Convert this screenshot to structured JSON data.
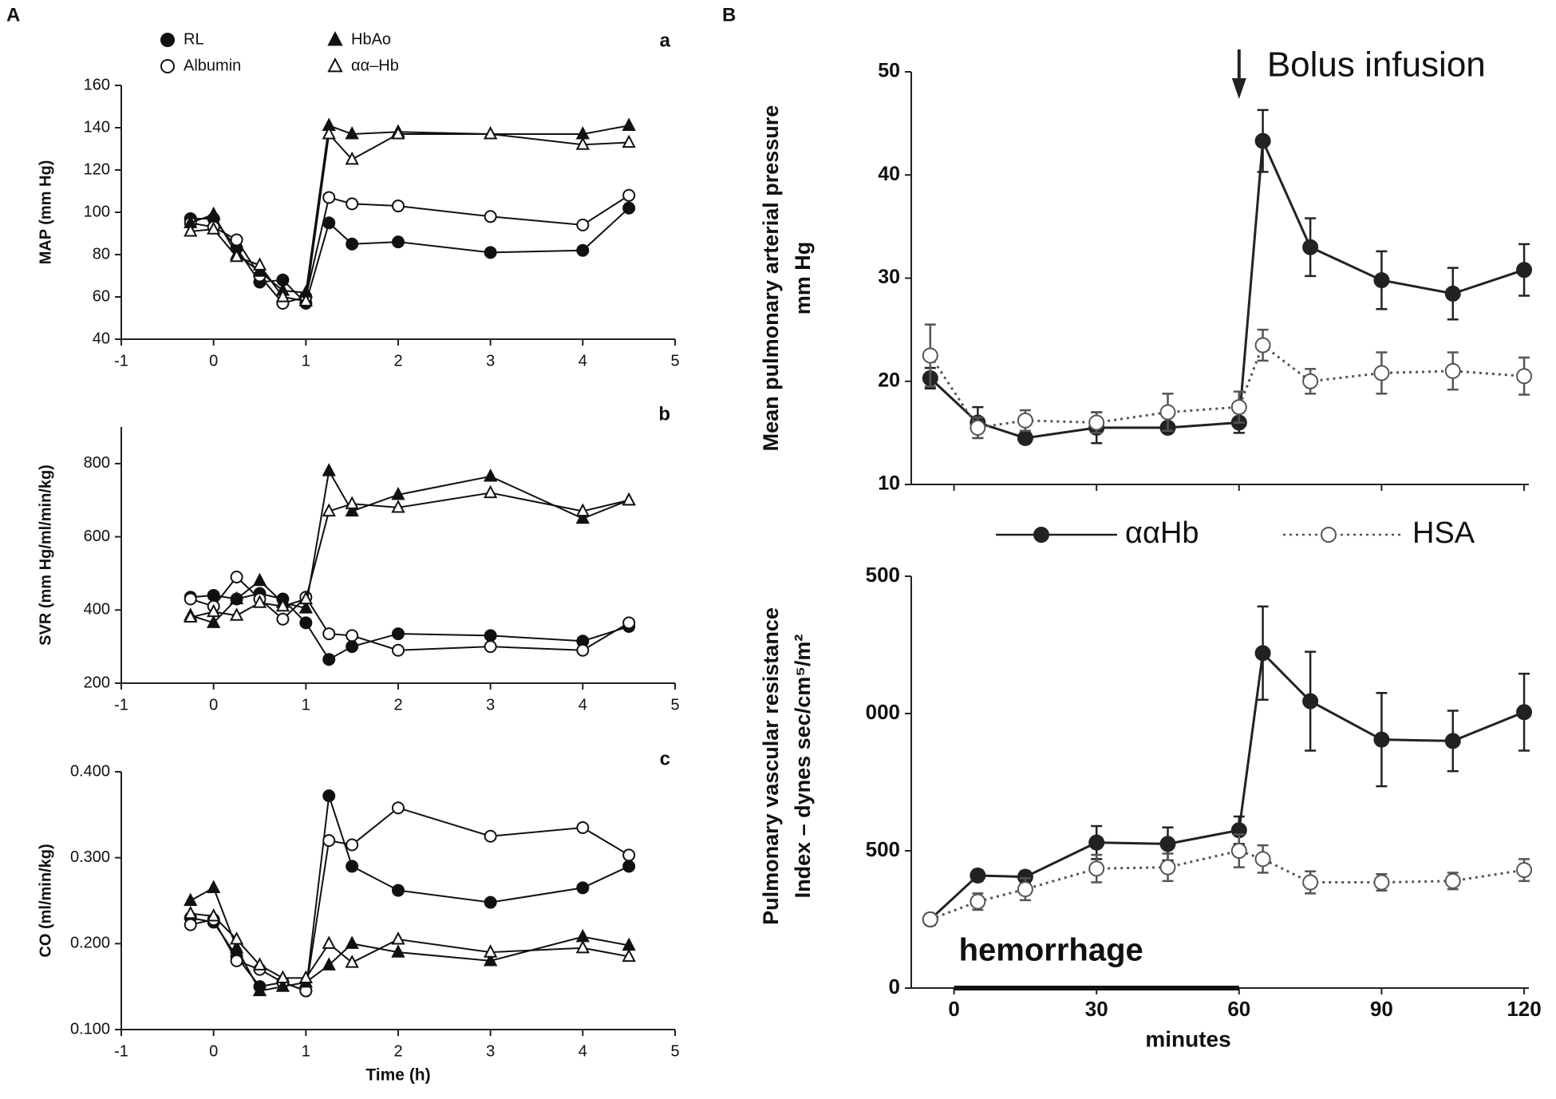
{
  "panels": [
    "A",
    "B"
  ],
  "chart_data": [
    {
      "type": "line",
      "label": "a",
      "ylabel": [
        "MAP (mm Hg)"
      ],
      "x": [
        -0.25,
        0,
        0.25,
        0.5,
        0.75,
        1,
        1.25,
        1.5,
        2,
        3,
        4,
        4.5
      ],
      "xlim": [
        -1,
        5
      ],
      "xticks": [
        -1,
        0,
        1,
        2,
        3,
        4,
        5
      ],
      "ylim": [
        40,
        160
      ],
      "yticks": [
        40,
        60,
        80,
        100,
        120,
        140,
        160
      ],
      "legend": true,
      "series": [
        {
          "name": "RL",
          "color": "#111111",
          "marker": "circle",
          "fill": "filled",
          "dash": "solid",
          "values": [
            97,
            97,
            83,
            67,
            68,
            57,
            95,
            85,
            86,
            81,
            82,
            102
          ]
        },
        {
          "name": "Albumin",
          "color": "#111111",
          "marker": "circle",
          "fill": "open",
          "dash": "solid",
          "values": [
            95,
            93,
            87,
            70,
            57,
            60,
            107,
            104,
            103,
            98,
            94,
            108
          ]
        },
        {
          "name": "HbAo",
          "color": "#111111",
          "marker": "triangle",
          "fill": "filled",
          "dash": "solid",
          "values": [
            95,
            99,
            80,
            72,
            63,
            62,
            141,
            137,
            138,
            137,
            137,
            141
          ]
        },
        {
          "name": "αα–Hb",
          "color": "#111111",
          "marker": "triangle",
          "fill": "open",
          "dash": "solid",
          "values": [
            91,
            92,
            79,
            75,
            60,
            58,
            137,
            125,
            137,
            137,
            132,
            133
          ]
        }
      ]
    },
    {
      "type": "line",
      "label": "b",
      "ylabel": [
        "SVR (mm Hg/ml/min/kg)"
      ],
      "x": [
        -0.25,
        0,
        0.25,
        0.5,
        0.75,
        1,
        1.25,
        1.5,
        2,
        3,
        4,
        4.5
      ],
      "xlim": [
        -1,
        5
      ],
      "xticks": [
        -1,
        0,
        1,
        2,
        3,
        4,
        5
      ],
      "ylim": [
        200,
        900
      ],
      "yticks": [
        200,
        400,
        600,
        800
      ],
      "series": [
        {
          "color": "#111111",
          "marker": "circle",
          "fill": "filled",
          "dash": "solid",
          "values": [
            435,
            440,
            430,
            445,
            430,
            365,
            265,
            300,
            335,
            330,
            315,
            355
          ]
        },
        {
          "color": "#111111",
          "marker": "circle",
          "fill": "open",
          "dash": "solid",
          "values": [
            430,
            410,
            490,
            430,
            375,
            435,
            335,
            330,
            290,
            300,
            290,
            365
          ]
        },
        {
          "color": "#111111",
          "marker": "triangle",
          "fill": "filled",
          "dash": "solid",
          "values": [
            385,
            365,
            430,
            480,
            420,
            405,
            780,
            670,
            715,
            765,
            650,
            700
          ]
        },
        {
          "color": "#111111",
          "marker": "triangle",
          "fill": "open",
          "dash": "solid",
          "values": [
            380,
            395,
            385,
            420,
            410,
            430,
            670,
            690,
            680,
            720,
            670,
            700
          ]
        }
      ]
    },
    {
      "type": "line",
      "label": "c",
      "ylabel": [
        "CO (ml/min/kg)"
      ],
      "xlabel": "Time (h)",
      "x": [
        -0.25,
        0,
        0.25,
        0.5,
        0.75,
        1,
        1.25,
        1.5,
        2,
        3,
        4,
        4.5
      ],
      "xlim": [
        -1,
        5
      ],
      "xticks": [
        -1,
        0,
        1,
        2,
        3,
        4,
        5
      ],
      "ylim": [
        0.1,
        0.4
      ],
      "yticks": [
        {
          "value": 0.1,
          "label": "0.100"
        },
        {
          "value": 0.2,
          "label": "0.200"
        },
        {
          "value": 0.3,
          "label": "0.300"
        },
        {
          "value": 0.4,
          "label": "0.400"
        }
      ],
      "series": [
        {
          "color": "#111111",
          "marker": "circle",
          "fill": "filled",
          "dash": "solid",
          "values": [
            0.23,
            0.225,
            0.185,
            0.15,
            0.155,
            0.145,
            0.372,
            0.29,
            0.262,
            0.248,
            0.265,
            0.29
          ]
        },
        {
          "color": "#111111",
          "marker": "circle",
          "fill": "open",
          "dash": "solid",
          "values": [
            0.222,
            0.228,
            0.18,
            0.17,
            0.155,
            0.145,
            0.32,
            0.315,
            0.358,
            0.325,
            0.335,
            0.303
          ]
        },
        {
          "color": "#111111",
          "marker": "triangle",
          "fill": "filled",
          "dash": "solid",
          "values": [
            0.25,
            0.265,
            0.195,
            0.145,
            0.15,
            0.155,
            0.175,
            0.2,
            0.19,
            0.18,
            0.208,
            0.198
          ]
        },
        {
          "color": "#111111",
          "marker": "triangle",
          "fill": "open",
          "dash": "solid",
          "values": [
            0.235,
            0.232,
            0.205,
            0.175,
            0.16,
            0.16,
            0.2,
            0.178,
            0.205,
            0.19,
            0.195,
            0.185
          ]
        }
      ]
    },
    {
      "type": "line",
      "ylabel": [
        "Mean pulmonary arterial pressure",
        "mm Hg"
      ],
      "annotation": "Bolus infusion",
      "x": [
        -5,
        5,
        15,
        30,
        45,
        60,
        65,
        75,
        90,
        105,
        120
      ],
      "xlim": [
        -9,
        121
      ],
      "xticks": [
        0,
        30,
        60,
        90,
        120
      ],
      "xtick_labels": false,
      "ylim": [
        10,
        50
      ],
      "yticks": [
        10,
        20,
        30,
        40,
        50
      ],
      "legend": true,
      "series": [
        {
          "name": "ααHb",
          "color": "#222222",
          "marker": "circle",
          "fill": "filled",
          "dash": "solid",
          "values": [
            20.3,
            16,
            14.5,
            15.5,
            15.5,
            16,
            43.3,
            33,
            29.8,
            28.5,
            30.8
          ],
          "errors": [
            1,
            1.5,
            0.5,
            1.5,
            0.5,
            1,
            3,
            2.8,
            2.8,
            2.5,
            2.5
          ]
        },
        {
          "name": "HSA",
          "color": "#555555",
          "marker": "circle",
          "fill": "open",
          "dash": "dotted",
          "values": [
            22.5,
            15.5,
            16.2,
            16,
            17,
            17.5,
            23.5,
            20,
            20.8,
            21,
            20.5
          ],
          "errors": [
            3,
            1,
            1,
            1,
            1.8,
            1.5,
            1.5,
            1.2,
            2,
            1.8,
            1.8
          ]
        }
      ]
    },
    {
      "type": "line",
      "ylabel": [
        "Pulmonary vascular resistance",
        "Index – dynes sec/cm⁵/m²"
      ],
      "xlabel": "minutes",
      "annotation": "hemorrhage",
      "x": [
        -5,
        5,
        15,
        30,
        45,
        60,
        65,
        75,
        90,
        105,
        120
      ],
      "xlim": [
        -9,
        121
      ],
      "xticks": [
        0,
        30,
        60,
        90,
        120
      ],
      "ylim": [
        0,
        1500
      ],
      "yticks": [
        0,
        500,
        {
          "value": 1000,
          "label": "000"
        },
        {
          "value": 1500,
          "label": "500"
        }
      ],
      "series": [
        {
          "color": "#222222",
          "marker": "circle",
          "fill": "filled",
          "dash": "solid",
          "values": [
            250,
            410,
            405,
            530,
            525,
            575,
            1220,
            1045,
            905,
            900,
            1005
          ],
          "errors": [
            20,
            20,
            20,
            60,
            60,
            50,
            170,
            180,
            170,
            110,
            140
          ]
        },
        {
          "color": "#555555",
          "marker": "circle",
          "fill": "open",
          "dash": "dotted",
          "values": [
            250,
            315,
            360,
            435,
            440,
            500,
            470,
            385,
            385,
            390,
            430
          ],
          "errors": [
            20,
            30,
            40,
            50,
            50,
            60,
            50,
            40,
            30,
            30,
            40
          ]
        }
      ]
    }
  ]
}
